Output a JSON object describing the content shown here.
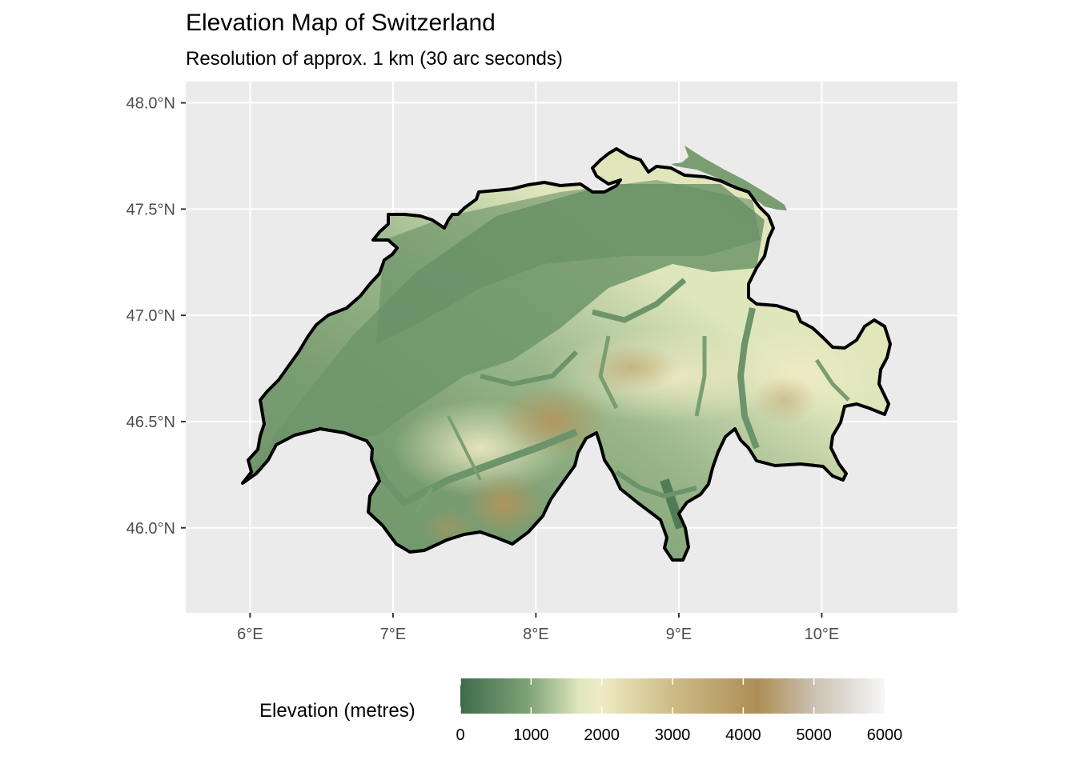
{
  "chart_data": {
    "type": "heatmap",
    "title": "Elevation Map of Switzerland",
    "subtitle": "Resolution of approx. 1 km (30 arc seconds)",
    "x_ticks": [
      "6°E",
      "7°E",
      "8°E",
      "9°E",
      "10°E"
    ],
    "x_tick_values": [
      6,
      7,
      8,
      9,
      10
    ],
    "y_ticks": [
      "48.0°N",
      "47.5°N",
      "47.0°N",
      "46.5°N",
      "46.0°N"
    ],
    "y_tick_values": [
      48.0,
      47.5,
      47.0,
      46.5,
      46.0
    ],
    "xlim": [
      5.55,
      10.95
    ],
    "ylim": [
      45.6,
      48.1
    ],
    "grid": true,
    "legend": {
      "title": "Elevation (metres)",
      "placement": "bottom",
      "ticks": [
        0,
        1000,
        2000,
        3000,
        4000,
        5000,
        6000
      ],
      "range": [
        0,
        6000
      ],
      "colors": [
        "#3e6b4b",
        "#7fa177",
        "#dfe7bd",
        "#efebc4",
        "#cdbb86",
        "#ad8e56",
        "#cbc3b5",
        "#f7f7f7"
      ]
    },
    "panel_background": "#ebebeb",
    "gridline_color": "#ffffff",
    "border_color": "#000000"
  }
}
